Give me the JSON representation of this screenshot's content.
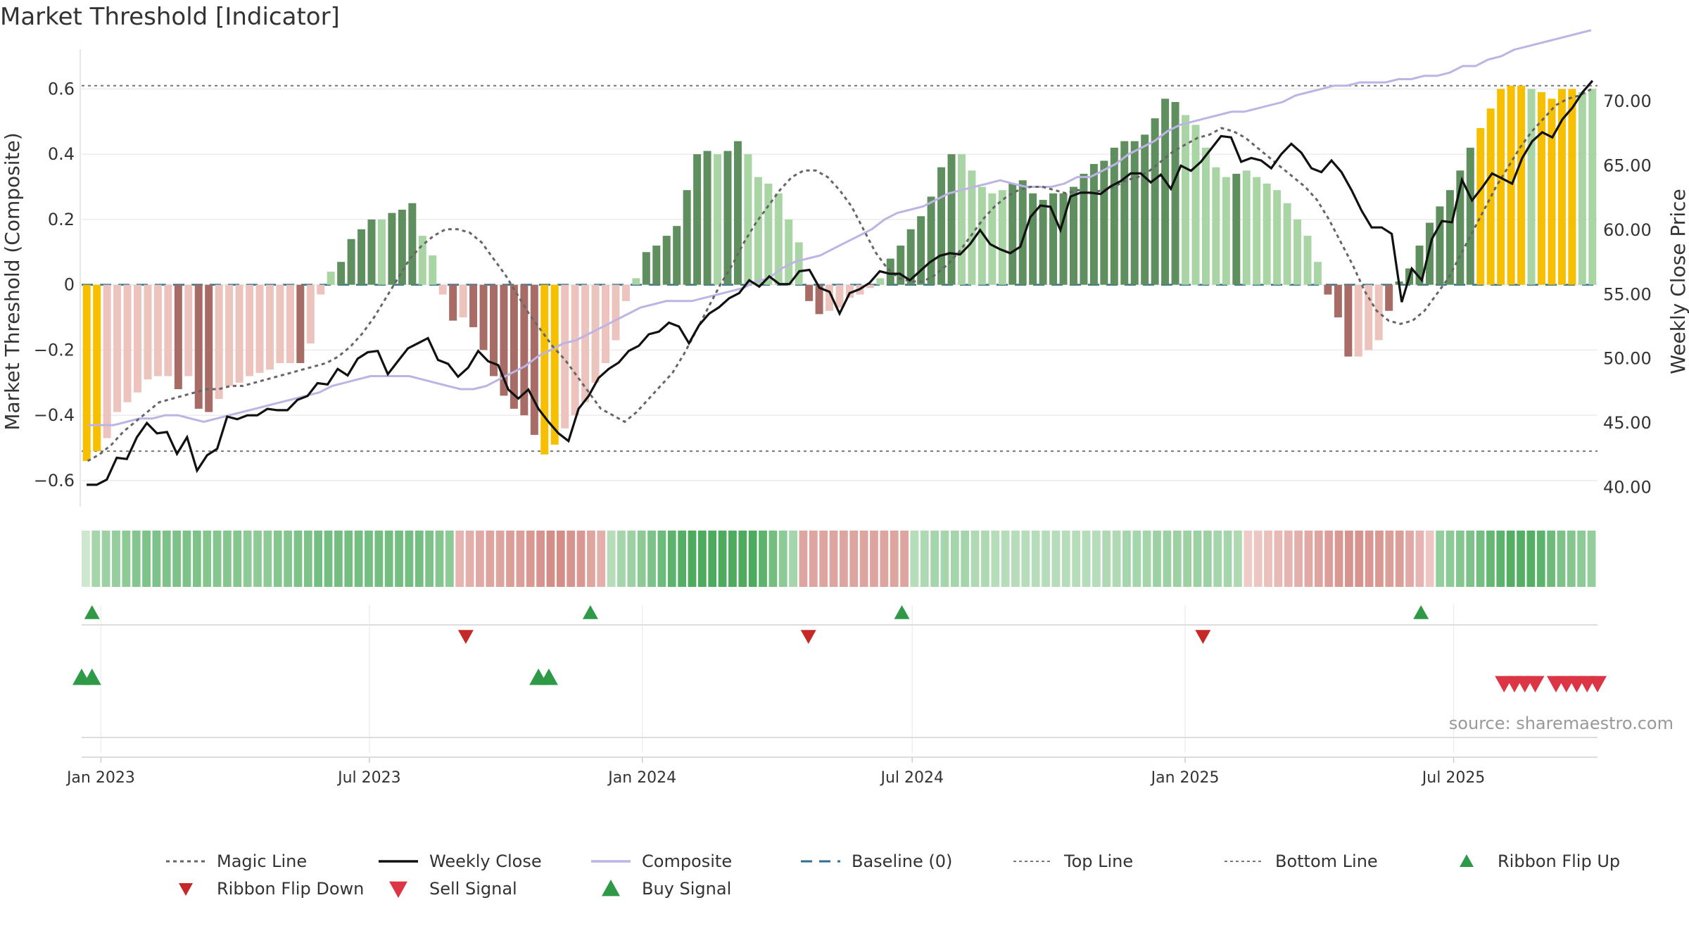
{
  "title": "Market Threshold [Indicator]",
  "source": "source: sharemaestro.com",
  "colors": {
    "magic": "#666666",
    "close": "#111111",
    "composite": "#bdb4e4",
    "baseline": "#2f6f8f",
    "threshold": "#777777",
    "bar_strong_pos": "#5f8f5f",
    "bar_weak_pos": "#a9d5a4",
    "bar_strong_neg": "#a86c66",
    "bar_weak_neg": "#ecc3bd",
    "bar_extreme": "#f6c000",
    "buy": "#2e9a48",
    "sell": "#dc3545",
    "flip_down": "#c62828"
  },
  "chart_data": {
    "type": "bar",
    "title": "Market Threshold [Indicator]",
    "xlabel": "",
    "ylabel": "Market Threshold (Composite)",
    "y2label": "Weekly Close Price",
    "ylim": [
      -0.68,
      0.7
    ],
    "y2lim": [
      38.5,
      73.5
    ],
    "yticks": [
      -0.6,
      -0.4,
      -0.2,
      0,
      0.2,
      0.4,
      0.6
    ],
    "ytick_labels": [
      "−0.6",
      "−0.4",
      "−0.2",
      "0",
      "0.2",
      "0.4",
      "0.6"
    ],
    "y2ticks": [
      40,
      45,
      50,
      55,
      60,
      65,
      70
    ],
    "y2tick_labels": [
      "40.00",
      "45.00",
      "50.00",
      "55.00",
      "60.00",
      "65.00",
      "70.00"
    ],
    "x_start": "2022-12-19",
    "x_end": "2025-10-06",
    "xticks": [
      "2023-01-01",
      "2023-07-01",
      "2024-01-01",
      "2024-07-01",
      "2025-01-01",
      "2025-07-01"
    ],
    "xtick_labels": [
      "Jan 2023",
      "Jul 2023",
      "Jan 2024",
      "Jul 2024",
      "Jan 2025",
      "Jul 2025"
    ],
    "top_line": 0.61,
    "bottom_line": -0.51,
    "baseline": 0,
    "grid": true,
    "legend_position": "bottom",
    "composite_bars": [
      -0.54,
      -0.51,
      -0.47,
      -0.39,
      -0.36,
      -0.33,
      -0.29,
      -0.28,
      -0.28,
      -0.32,
      -0.28,
      -0.38,
      -0.39,
      -0.35,
      -0.31,
      -0.3,
      -0.28,
      -0.27,
      -0.26,
      -0.24,
      -0.24,
      -0.24,
      -0.18,
      -0.03,
      0.04,
      0.07,
      0.14,
      0.17,
      0.2,
      0.2,
      0.22,
      0.23,
      0.25,
      0.15,
      0.09,
      -0.03,
      -0.11,
      -0.1,
      -0.13,
      -0.2,
      -0.28,
      -0.34,
      -0.38,
      -0.4,
      -0.46,
      -0.52,
      -0.49,
      -0.44,
      -0.4,
      -0.36,
      -0.3,
      -0.24,
      -0.17,
      -0.05,
      0.02,
      0.1,
      0.12,
      0.15,
      0.18,
      0.29,
      0.4,
      0.41,
      0.4,
      0.41,
      0.44,
      0.4,
      0.33,
      0.31,
      0.28,
      0.2,
      0.13,
      -0.05,
      -0.09,
      -0.08,
      -0.07,
      -0.04,
      -0.03,
      -0.01,
      0.02,
      0.08,
      0.12,
      0.17,
      0.21,
      0.27,
      0.36,
      0.4,
      0.4,
      0.35,
      0.3,
      0.28,
      0.29,
      0.31,
      0.32,
      0.28,
      0.26,
      0.28,
      0.28,
      0.3,
      0.34,
      0.37,
      0.38,
      0.42,
      0.44,
      0.44,
      0.46,
      0.51,
      0.57,
      0.56,
      0.52,
      0.49,
      0.42,
      0.36,
      0.33,
      0.34,
      0.35,
      0.33,
      0.31,
      0.29,
      0.25,
      0.2,
      0.15,
      0.07,
      -0.03,
      -0.1,
      -0.22,
      -0.22,
      -0.2,
      -0.17,
      -0.08,
      0.01,
      0.05,
      0.12,
      0.19,
      0.24,
      0.29,
      0.35,
      0.42,
      0.48,
      0.54,
      0.6,
      0.61,
      0.61,
      0.6,
      0.59,
      0.57,
      0.6,
      0.6,
      0.59,
      0.6
    ],
    "bar_classes": [
      "e",
      "e",
      "w",
      "w",
      "w",
      "w",
      "w",
      "w",
      "w",
      "s",
      "w",
      "s",
      "s",
      "w",
      "w",
      "w",
      "w",
      "w",
      "w",
      "w",
      "w",
      "s",
      "w",
      "w",
      "w",
      "s",
      "s",
      "s",
      "s",
      "w",
      "s",
      "s",
      "s",
      "w",
      "w",
      "w",
      "s",
      "w",
      "s",
      "s",
      "s",
      "s",
      "s",
      "s",
      "s",
      "e",
      "e",
      "w",
      "w",
      "w",
      "w",
      "w",
      "w",
      "w",
      "w",
      "s",
      "s",
      "s",
      "s",
      "s",
      "s",
      "s",
      "w",
      "s",
      "s",
      "w",
      "w",
      "w",
      "w",
      "w",
      "w",
      "s",
      "s",
      "w",
      "w",
      "w",
      "w",
      "w",
      "w",
      "s",
      "s",
      "s",
      "s",
      "s",
      "s",
      "s",
      "w",
      "w",
      "w",
      "w",
      "w",
      "s",
      "s",
      "s",
      "s",
      "s",
      "s",
      "s",
      "s",
      "s",
      "s",
      "s",
      "s",
      "s",
      "s",
      "s",
      "s",
      "s",
      "w",
      "w",
      "w",
      "w",
      "w",
      "s",
      "w",
      "w",
      "w",
      "w",
      "w",
      "w",
      "w",
      "w",
      "s",
      "s",
      "s",
      "w",
      "w",
      "w",
      "s",
      "s",
      "s",
      "s",
      "s",
      "s",
      "s",
      "s",
      "s",
      "e",
      "e",
      "e",
      "e",
      "e",
      "w",
      "e",
      "e",
      "e",
      "e"
    ],
    "series": [
      {
        "name": "Magic Line",
        "values": [
          -0.54,
          -0.52,
          -0.49,
          -0.45,
          -0.42,
          -0.39,
          -0.36,
          -0.35,
          -0.34,
          -0.33,
          -0.32,
          -0.32,
          -0.31,
          -0.31,
          -0.3,
          -0.29,
          -0.28,
          -0.27,
          -0.26,
          -0.25,
          -0.24,
          -0.22,
          -0.19,
          -0.15,
          -0.1,
          -0.04,
          0.02,
          0.08,
          0.12,
          0.15,
          0.17,
          0.17,
          0.16,
          0.13,
          0.08,
          0.03,
          -0.03,
          -0.09,
          -0.14,
          -0.19,
          -0.23,
          -0.28,
          -0.33,
          -0.38,
          -0.4,
          -0.42,
          -0.39,
          -0.35,
          -0.31,
          -0.27,
          -0.21,
          -0.14,
          -0.07,
          0.0,
          0.06,
          0.13,
          0.19,
          0.24,
          0.29,
          0.33,
          0.35,
          0.35,
          0.33,
          0.29,
          0.24,
          0.17,
          0.1,
          0.05,
          0.02,
          0.01,
          0.01,
          0.03,
          0.06,
          0.1,
          0.15,
          0.2,
          0.24,
          0.27,
          0.29,
          0.3,
          0.3,
          0.29,
          0.28,
          0.29,
          0.28,
          0.29,
          0.3,
          0.32,
          0.33,
          0.35,
          0.38,
          0.41,
          0.43,
          0.45,
          0.46,
          0.48,
          0.47,
          0.45,
          0.42,
          0.39,
          0.36,
          0.33,
          0.3,
          0.26,
          0.2,
          0.13,
          0.06,
          -0.02,
          -0.08,
          -0.11,
          -0.12,
          -0.11,
          -0.08,
          -0.03,
          0.02,
          0.09,
          0.16,
          0.23,
          0.3,
          0.36,
          0.42,
          0.47,
          0.51,
          0.55,
          0.57,
          0.58,
          0.6
        ]
      },
      {
        "name": "Weekly Close",
        "values": [
          40.5,
          40.5,
          40.9,
          42.6,
          42.4,
          43.9,
          45.1,
          44.2,
          44.3,
          42.6,
          43.9,
          41.3,
          42.5,
          43.0,
          45.5,
          45.2,
          45.6,
          45.6,
          46.1,
          46.0,
          46.0,
          46.8,
          47.0,
          48.1,
          48.0,
          49.3,
          48.7,
          50.0,
          50.5,
          50.5,
          48.8,
          49.8,
          50.8,
          51.2,
          51.6,
          49.9,
          49.6,
          48.6,
          49.3,
          50.6,
          49.8,
          49.5,
          47.6,
          46.9,
          47.6,
          46.1,
          45.1,
          44.2,
          43.6,
          46.1,
          47.1,
          48.5,
          49.2,
          49.7,
          50.6,
          51.0,
          51.9,
          52.1,
          52.8,
          52.5,
          51.2,
          52.6,
          53.5,
          54.0,
          54.7,
          55.1,
          56.1,
          55.6,
          56.4,
          55.8,
          55.8,
          56.8,
          56.9,
          55.5,
          55.2,
          53.5,
          55.1,
          55.4,
          55.9,
          56.8,
          56.6,
          56.6,
          56.1,
          56.8,
          57.5,
          58.0,
          58.2,
          58.1,
          58.9,
          60.0,
          58.9,
          58.5,
          58.2,
          58.7,
          61.0,
          61.9,
          61.8,
          60.0,
          62.6,
          62.9,
          62.9,
          62.8,
          63.4,
          63.8,
          64.4,
          64.4,
          63.7,
          64.3,
          63.2,
          65.0,
          64.6,
          65.3,
          66.3,
          67.3,
          67.2,
          65.3,
          65.6,
          65.4,
          64.8,
          65.9,
          66.7,
          66.0,
          64.8,
          64.5,
          65.4,
          64.5,
          63.1,
          61.5,
          60.2,
          60.2,
          59.7,
          54.4,
          57.0,
          56.1,
          59.3,
          60.7,
          60.6,
          63.9,
          62.3,
          63.3,
          64.4,
          64.0,
          63.6,
          65.6,
          66.9,
          67.6,
          67.2,
          68.6,
          69.5,
          70.7,
          71.6
        ]
      },
      {
        "name": "Composite",
        "values": [
          -0.43,
          -0.43,
          -0.43,
          -0.42,
          -0.41,
          -0.41,
          -0.4,
          -0.4,
          -0.41,
          -0.42,
          -0.41,
          -0.4,
          -0.39,
          -0.38,
          -0.37,
          -0.36,
          -0.35,
          -0.34,
          -0.33,
          -0.31,
          -0.3,
          -0.29,
          -0.28,
          -0.28,
          -0.28,
          -0.28,
          -0.29,
          -0.3,
          -0.31,
          -0.32,
          -0.32,
          -0.31,
          -0.29,
          -0.27,
          -0.25,
          -0.22,
          -0.2,
          -0.18,
          -0.17,
          -0.15,
          -0.13,
          -0.11,
          -0.09,
          -0.07,
          -0.06,
          -0.05,
          -0.05,
          -0.05,
          -0.04,
          -0.03,
          -0.02,
          -0.01,
          0.01,
          0.02,
          0.05,
          0.07,
          0.08,
          0.09,
          0.11,
          0.13,
          0.15,
          0.17,
          0.2,
          0.22,
          0.23,
          0.24,
          0.26,
          0.28,
          0.29,
          0.3,
          0.31,
          0.32,
          0.31,
          0.3,
          0.3,
          0.3,
          0.31,
          0.33,
          0.33,
          0.35,
          0.37,
          0.4,
          0.42,
          0.44,
          0.47,
          0.49,
          0.5,
          0.51,
          0.52,
          0.53,
          0.53,
          0.54,
          0.55,
          0.56,
          0.58,
          0.59,
          0.6,
          0.61,
          0.61,
          0.62,
          0.62,
          0.62,
          0.63,
          0.63,
          0.64,
          0.64,
          0.65,
          0.67,
          0.67,
          0.69,
          0.7,
          0.72,
          0.73,
          0.74,
          0.75,
          0.76,
          0.77,
          0.78
        ]
      },
      {
        "name": "Weekly Close (price)",
        "values": [
          40.2,
          40.2,
          40.6,
          42.3,
          42.2,
          43.9,
          45.0,
          44.2,
          44.3,
          42.6,
          43.9,
          41.3,
          42.5,
          43.0,
          45.5,
          45.3,
          45.6,
          45.6,
          46.1,
          46.0,
          46.0,
          46.8,
          47.1,
          48.1,
          48.0,
          49.2,
          48.7,
          50.0,
          50.5,
          50.6,
          48.8,
          49.8,
          50.8,
          51.2,
          51.6,
          49.9,
          49.6,
          48.6,
          49.3,
          50.6,
          49.8,
          49.5,
          47.6,
          46.9,
          47.6,
          46.1,
          45.1,
          44.2,
          43.6,
          46.1,
          47.1,
          48.5,
          49.2,
          49.7,
          50.6,
          51.0,
          51.9,
          52.1,
          52.8,
          52.5,
          51.2,
          52.6,
          53.5,
          54.0,
          54.7,
          55.1,
          56.1,
          55.6,
          56.4,
          55.8,
          55.8,
          56.8,
          56.9,
          55.5,
          55.2,
          53.5,
          55.1,
          55.4,
          55.9,
          56.8,
          56.6,
          56.6,
          56.1,
          56.8,
          57.5,
          58.0,
          58.2,
          58.1,
          58.9,
          60.0,
          58.9,
          58.5,
          58.2,
          58.7,
          61.0,
          61.9,
          61.8,
          60.0,
          62.6,
          62.9,
          62.9,
          62.8,
          63.4,
          63.8,
          64.4,
          64.4,
          63.7,
          64.3,
          63.2,
          65.0,
          64.6,
          65.3,
          66.3,
          67.3,
          67.2,
          65.3,
          65.6,
          65.4,
          64.8,
          65.9,
          66.7,
          66.0,
          64.8,
          64.5,
          65.4,
          64.5,
          63.1,
          61.5,
          60.2,
          60.2,
          59.7,
          54.4,
          57.0,
          56.1,
          59.3,
          60.7,
          60.6,
          63.9,
          62.3,
          63.3,
          64.4,
          64.0,
          63.6,
          65.6,
          66.9,
          67.6,
          67.2,
          68.6,
          69.5,
          70.7,
          71.6
        ]
      }
    ],
    "ribbon": [
      0.05,
      0.3,
      0.35,
      0.4,
      0.45,
      0.5,
      0.55,
      0.55,
      0.55,
      0.55,
      0.55,
      0.55,
      0.5,
      0.5,
      0.5,
      0.5,
      0.45,
      0.45,
      0.45,
      0.5,
      0.5,
      0.55,
      0.55,
      0.6,
      0.6,
      0.6,
      0.6,
      0.6,
      0.6,
      0.6,
      0.6,
      0.6,
      0.6,
      0.6,
      0.55,
      0.5,
      0.45,
      -0.3,
      -0.35,
      -0.4,
      -0.45,
      -0.45,
      -0.5,
      -0.5,
      -0.55,
      -0.6,
      -0.65,
      -0.65,
      -0.6,
      -0.55,
      -0.45,
      -0.35,
      0.2,
      0.3,
      0.35,
      0.45,
      0.55,
      0.65,
      0.75,
      0.8,
      0.85,
      0.85,
      0.85,
      0.85,
      0.85,
      0.85,
      0.85,
      0.75,
      0.6,
      0.45,
      0.3,
      -0.45,
      -0.45,
      -0.45,
      -0.45,
      -0.45,
      -0.45,
      -0.45,
      -0.45,
      -0.45,
      -0.45,
      -0.45,
      0.2,
      0.25,
      0.3,
      0.3,
      0.3,
      0.3,
      0.25,
      0.25,
      0.2,
      0.2,
      0.2,
      0.2,
      0.2,
      0.2,
      0.2,
      0.2,
      0.2,
      0.2,
      0.2,
      0.25,
      0.25,
      0.3,
      0.3,
      0.3,
      0.35,
      0.35,
      0.35,
      0.35,
      0.35,
      0.35,
      0.3,
      0.3,
      0.25,
      -0.1,
      -0.15,
      -0.2,
      -0.25,
      -0.3,
      -0.35,
      -0.4,
      -0.45,
      -0.5,
      -0.55,
      -0.6,
      -0.6,
      -0.55,
      -0.55,
      -0.5,
      -0.5,
      -0.4,
      -0.3,
      -0.15,
      0.4,
      0.45,
      0.5,
      0.55,
      0.6,
      0.7,
      0.75,
      0.8,
      0.8,
      0.8,
      0.75,
      0.65,
      0.55,
      0.5,
      0.45,
      0.4
    ],
    "ribbon_flips_up": [
      "2022-12-26",
      "2023-11-27",
      "2024-06-24",
      "2025-06-09"
    ],
    "ribbon_flips_down": [
      "2023-09-04",
      "2024-04-22",
      "2025-01-13"
    ],
    "buy_signals": [
      "2022-12-19",
      "2022-12-26",
      "2023-10-23",
      "2023-10-30"
    ],
    "sell_signals": [
      "2025-08-04",
      "2025-08-11",
      "2025-08-18",
      "2025-08-25",
      "2025-09-08",
      "2025-09-15",
      "2025-09-22",
      "2025-09-29",
      "2025-10-06"
    ]
  },
  "legend": [
    {
      "label": "Magic Line",
      "kind": "dotted",
      "color": "#666666"
    },
    {
      "label": "Weekly Close",
      "kind": "solid",
      "color": "#111111"
    },
    {
      "label": "Composite",
      "kind": "solid",
      "color": "#bdb4e4"
    },
    {
      "label": "Baseline (0)",
      "kind": "dashed",
      "color": "#2f6f8f"
    },
    {
      "label": "Top Line",
      "kind": "fine-dash",
      "color": "#777777"
    },
    {
      "label": "Bottom Line",
      "kind": "fine-dash",
      "color": "#777777"
    },
    {
      "label": "Ribbon Flip Up",
      "kind": "tri-up",
      "color": "#2e9a48"
    },
    {
      "label": "Ribbon Flip Down",
      "kind": "tri-down",
      "color": "#c62828"
    },
    {
      "label": "Sell Signal",
      "kind": "tri-down-lg",
      "color": "#dc3545"
    },
    {
      "label": "Buy Signal",
      "kind": "tri-up-lg",
      "color": "#2e9a48"
    }
  ]
}
